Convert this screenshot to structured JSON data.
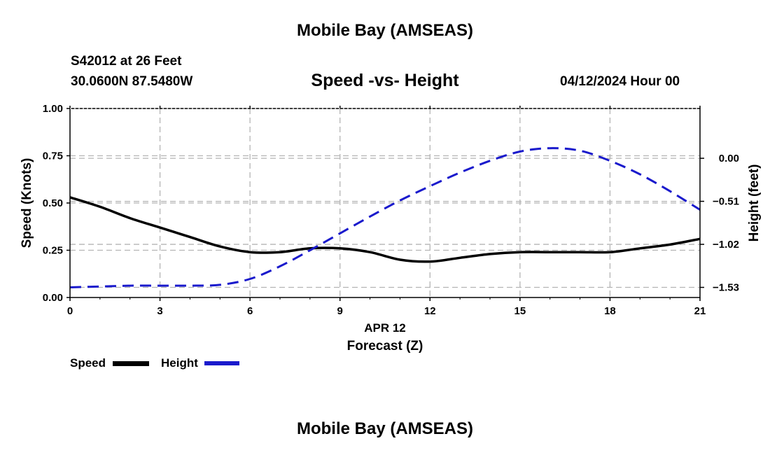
{
  "header": {
    "title": "Mobile Bay (AMSEAS)",
    "station": "S42012 at 26 Feet",
    "coordinates": "30.0600N  87.5480W",
    "subtitle": "Speed -vs- Height",
    "datetime": "04/12/2024 Hour 00"
  },
  "footer": {
    "title": "Mobile Bay (AMSEAS)"
  },
  "legend": {
    "speed_label": "Speed",
    "height_label": "Height"
  },
  "colors": {
    "speed": "#000000",
    "height": "#1a1acc",
    "grid": "#b4b4b4"
  },
  "chart_data": {
    "type": "line",
    "title": "Speed -vs- Height",
    "xlabel": "Forecast (Z)",
    "xdate": "APR 12",
    "ylabel": "Speed (Knots)",
    "y2label": "Height (feet)",
    "xlim": [
      0,
      21
    ],
    "ylim": [
      0,
      1
    ],
    "y2lim": [
      -1.65,
      0.59
    ],
    "xticks": [
      "0",
      "3",
      "6",
      "9",
      "12",
      "15",
      "18",
      "21"
    ],
    "yticks": [
      "0.00",
      "0.25",
      "0.50",
      "0.75",
      "1.00"
    ],
    "y2ticks": [
      "0.00",
      "−0.51",
      "−1.02",
      "−1.53"
    ],
    "y2tick_values": [
      0.0,
      -0.51,
      -1.02,
      -1.53
    ],
    "series": [
      {
        "name": "Speed",
        "axis": "left",
        "x": [
          0,
          1,
          2,
          3,
          4,
          5,
          6,
          7,
          8,
          9,
          10,
          11,
          12,
          13,
          14,
          15,
          16,
          17,
          18,
          19,
          20,
          21
        ],
        "values": [
          0.53,
          0.48,
          0.42,
          0.37,
          0.32,
          0.27,
          0.24,
          0.24,
          0.26,
          0.26,
          0.24,
          0.2,
          0.19,
          0.21,
          0.23,
          0.24,
          0.24,
          0.24,
          0.24,
          0.26,
          0.28,
          0.31
        ]
      },
      {
        "name": "Height",
        "axis": "right",
        "x": [
          0,
          1,
          2,
          3,
          4,
          5,
          6,
          7,
          8,
          9,
          10,
          11,
          12,
          13,
          14,
          15,
          16,
          17,
          18,
          19,
          20,
          21
        ],
        "values": [
          -1.53,
          -1.52,
          -1.51,
          -1.51,
          -1.51,
          -1.5,
          -1.43,
          -1.28,
          -1.09,
          -0.89,
          -0.69,
          -0.5,
          -0.33,
          -0.17,
          -0.03,
          0.08,
          0.12,
          0.09,
          -0.03,
          -0.19,
          -0.39,
          -0.61
        ]
      }
    ]
  }
}
